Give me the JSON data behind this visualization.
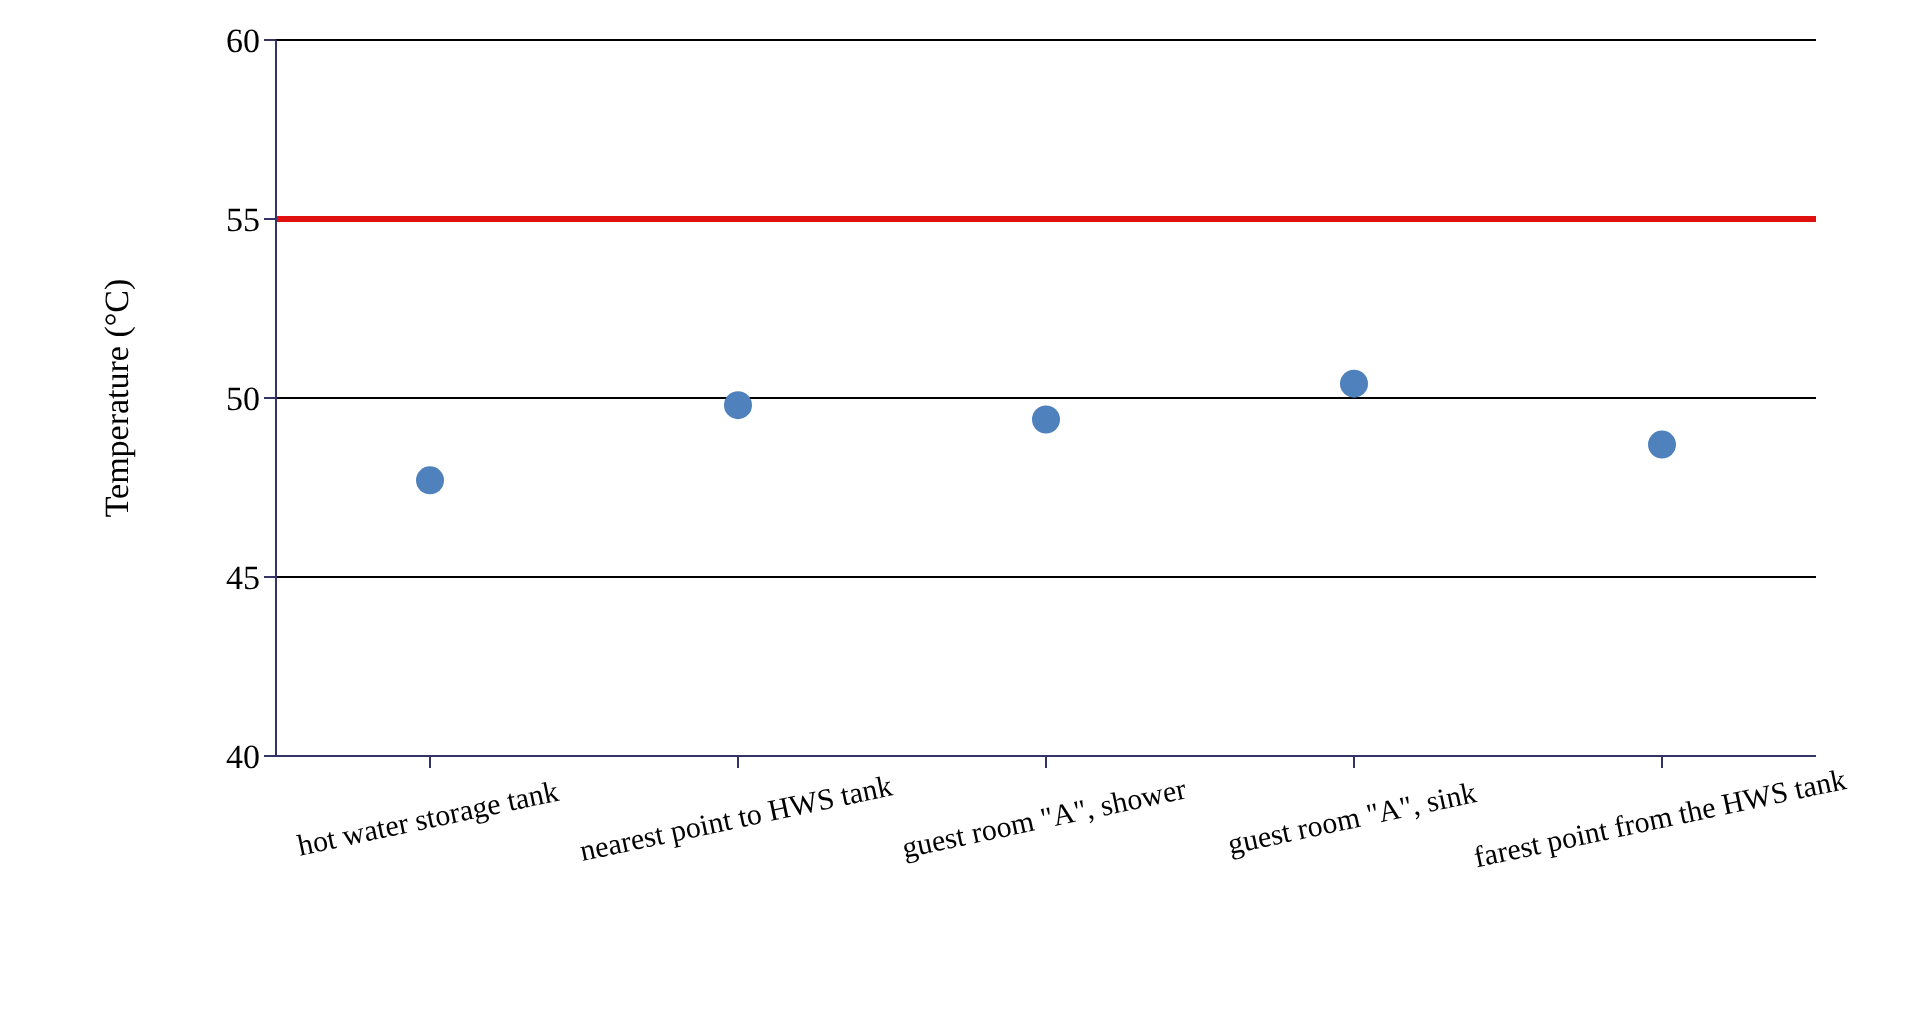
{
  "chart_data": {
    "type": "scatter",
    "ylabel": "Temperature (°C)",
    "categories": [
      "hot water storage tank",
      "nearest point to HWS tank",
      "guest room \"A\", shower",
      "guest room \"A\", sink",
      "farest point from the HWS tank"
    ],
    "series": [
      {
        "color": "#4f81bd",
        "values": [
          47.7,
          49.8,
          49.4,
          50.4,
          48.7
        ]
      }
    ],
    "ylim": [
      40,
      60
    ],
    "yticks": [
      40,
      45,
      50,
      55,
      60
    ],
    "grid": "y",
    "marker": "circle",
    "legend": false,
    "ref_lines": [
      {
        "axis": "y",
        "value": 55,
        "color": "#e01010"
      }
    ]
  }
}
